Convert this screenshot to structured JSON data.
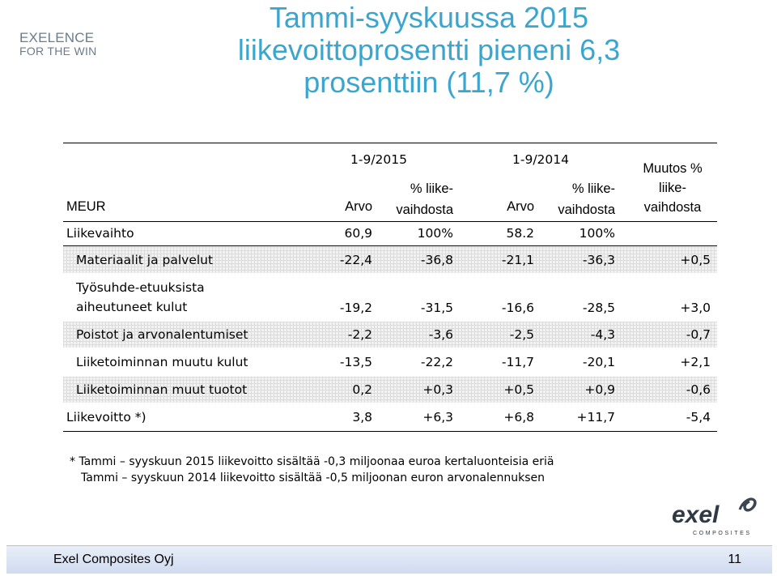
{
  "brand": {
    "line1": "EXELENCE",
    "line2": "FOR THE WIN"
  },
  "title": {
    "line1": "Tammi-syyskuussa 2015",
    "line2": "liikevoittoprosentti pieneni 6,3",
    "line3": "prosenttiin (11,7 %)"
  },
  "table": {
    "header": {
      "unit": "MEUR",
      "period1": "1-9/2015",
      "period2": "1-9/2014",
      "col_arvo": "Arvo",
      "col_pct_line1": "% liike-",
      "col_pct_line2": "vaihdosta",
      "change_line1": "Muutos %",
      "change_line2": "liike-",
      "change_line3": "vaihdosta"
    },
    "rows": [
      {
        "label": "Liikevaihto",
        "v2015": "60,9",
        "p2015": "100%",
        "v2014": "58.2",
        "p2014": "100%",
        "change": ""
      },
      {
        "label": "Materiaalit ja palvelut",
        "v2015": "-22,4",
        "p2015": "-36,8",
        "v2014": "-21,1",
        "p2014": "-36,3",
        "change": "+0,5"
      },
      {
        "label_line1": "Työsuhde-etuuksista",
        "label_line2": "aiheutuneet kulut",
        "v2015": "-19,2",
        "p2015": "-31,5",
        "v2014": "-16,6",
        "p2014": "-28,5",
        "change": "+3,0"
      },
      {
        "label": "Poistot ja arvonalentumiset",
        "v2015": "-2,2",
        "p2015": "-3,6",
        "v2014": "-2,5",
        "p2014": "-4,3",
        "change": "-0,7"
      },
      {
        "label": "Liiketoiminnan muutu kulut",
        "v2015": "-13,5",
        "p2015": "-22,2",
        "v2014": "-11,7",
        "p2014": "-20,1",
        "change": "+2,1"
      },
      {
        "label": "Liiketoiminnan muut tuotot",
        "v2015": "0,2",
        "p2015": "+0,3",
        "v2014": "+0,5",
        "p2014": "+0,9",
        "change": "-0,6"
      },
      {
        "label": "Liikevoitto *)",
        "v2015": "3,8",
        "p2015": "+6,3",
        "v2014": "+6,8",
        "p2014": "+11,7",
        "change": "-5,4"
      }
    ]
  },
  "notes": {
    "line1": "* Tammi – syyskuun 2015 liikevoitto sisältää -0,3 miljoonaa euroa kertaluonteisia eriä",
    "line2": "Tammi – syyskuun 2014 liikevoitto sisältää -0,5 miljoonan euron arvonalennuksen"
  },
  "logo": {
    "word": "exel",
    "sub": "COMPOSITES"
  },
  "footer": {
    "company": "Exel Composites Oyj",
    "page": "11"
  }
}
